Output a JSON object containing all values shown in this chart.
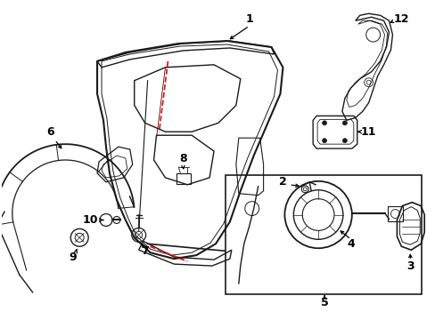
{
  "background_color": "#ffffff",
  "line_color": "#1a1a1a",
  "red_color": "#ff0000",
  "label_color": "#000000",
  "figsize": [
    4.89,
    3.6
  ],
  "dpi": 100
}
